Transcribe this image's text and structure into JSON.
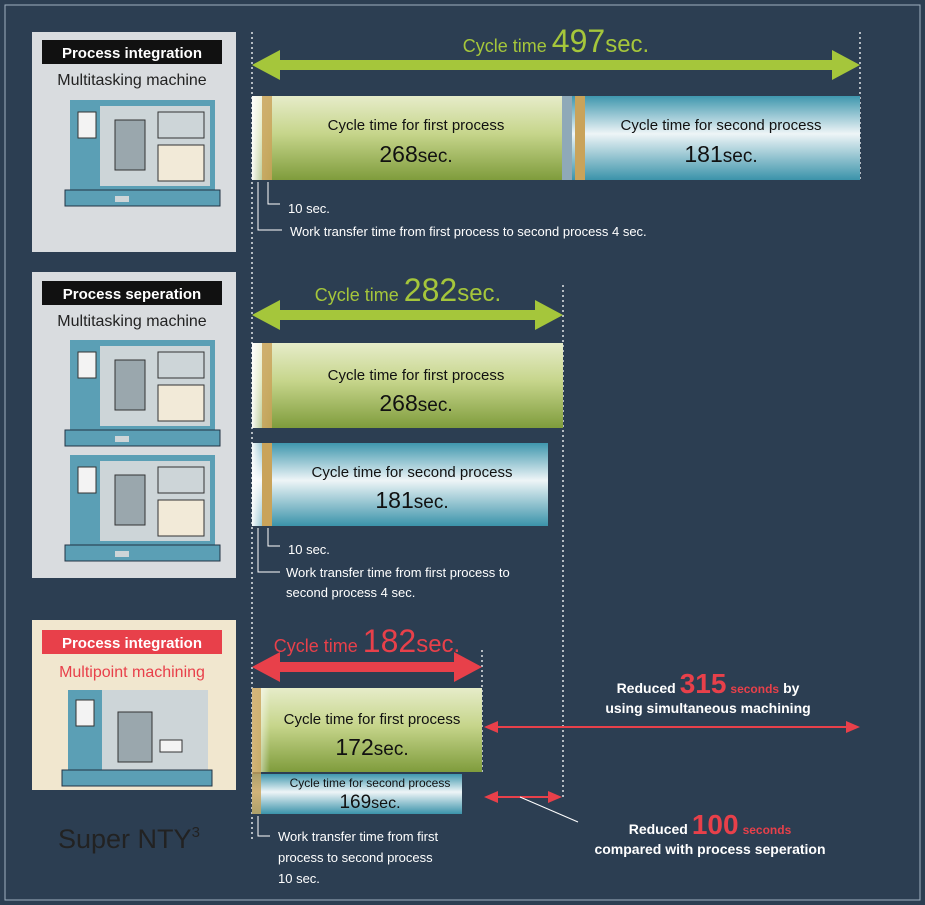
{
  "sections": [
    {
      "label": "Process integration",
      "machine": "Multitasking machine",
      "cycle": {
        "prefix": "Cycle time",
        "value": "497",
        "unit": "sec."
      },
      "bars": [
        {
          "label": "Cycle time for first process",
          "value": "268",
          "unit": "sec."
        },
        {
          "label": "Cycle time for second process",
          "value": "181",
          "unit": "sec."
        }
      ],
      "notes": [
        [
          "10 sec."
        ],
        [
          "Work transfer time from first process to second process 4 sec."
        ]
      ]
    },
    {
      "label": "Process seperation",
      "machine": "Multitasking machine",
      "cycle": {
        "prefix": "Cycle time",
        "value": "282",
        "unit": "sec."
      },
      "bars": [
        {
          "label": "Cycle time for first process",
          "value": "268",
          "unit": "sec."
        },
        {
          "label": "Cycle time for second process",
          "value": "181",
          "unit": "sec."
        }
      ],
      "notes": [
        [
          "10 sec."
        ],
        [
          "Work transfer time from first process to",
          "second process 4 sec."
        ]
      ]
    },
    {
      "label": "Process integration",
      "machine": "Multipoint machining",
      "cycle": {
        "prefix": "Cycle time",
        "value": "182",
        "unit": "sec."
      },
      "bars": [
        {
          "label": "Cycle time for first process",
          "value": "172",
          "unit": "sec."
        },
        {
          "label": "Cycle time for second process",
          "value": "169",
          "unit": "sec."
        }
      ],
      "notes": [
        [
          "Work transfer time from first",
          "process to second process",
          "10 sec."
        ]
      ]
    }
  ],
  "product": {
    "name": "Super NTY",
    "sup": "3"
  },
  "reductions": [
    {
      "prefix": "Reduced",
      "value": "315",
      "unit": "seconds",
      "suffix": "by",
      "line2": "using simultaneous machining"
    },
    {
      "prefix": "Reduced",
      "value": "100",
      "unit": "seconds",
      "line2": "compared with process seperation"
    }
  ]
}
